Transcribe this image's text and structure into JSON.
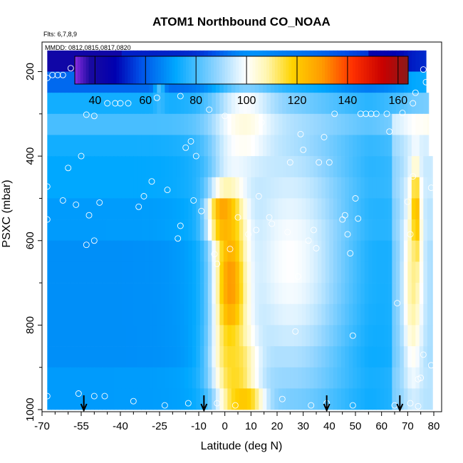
{
  "chart_data": {
    "type": "heatmap",
    "title": "ATOM1 Northbound CO_NOAA",
    "flights_label": "Flts: 6,7,8,9",
    "mmdd_label": "MMDD: 0812,0815,0817,0820",
    "xlabel": "Latitude (deg N)",
    "ylabel": "PSXC (mbar)",
    "xlim": [
      -70,
      83
    ],
    "ylim": [
      1005,
      130
    ],
    "y_inverted": true,
    "x_ticks": [
      -70,
      -55,
      -40,
      -25,
      -10,
      0,
      10,
      20,
      30,
      40,
      50,
      60,
      70,
      80
    ],
    "y_ticks": [
      200,
      400,
      600,
      800,
      1000
    ],
    "colorbar": {
      "range": [
        32,
        164
      ],
      "ticks": [
        40,
        60,
        80,
        100,
        120,
        140,
        160
      ],
      "stops": [
        {
          "v": 32,
          "c": "#8a2be2"
        },
        {
          "v": 38,
          "c": "#1a0aa0"
        },
        {
          "v": 48,
          "c": "#0000b0"
        },
        {
          "v": 58,
          "c": "#0050e8"
        },
        {
          "v": 72,
          "c": "#00a8ff"
        },
        {
          "v": 88,
          "c": "#8fd4ff"
        },
        {
          "v": 100,
          "c": "#ffffff"
        },
        {
          "v": 108,
          "c": "#fff6b0"
        },
        {
          "v": 118,
          "c": "#ffd400"
        },
        {
          "v": 130,
          "c": "#ff9a00"
        },
        {
          "v": 142,
          "c": "#ff3000"
        },
        {
          "v": 154,
          "c": "#c80000"
        },
        {
          "v": 164,
          "c": "#8b1a1a"
        }
      ]
    },
    "lat_range": [
      -68,
      79
    ],
    "pressure_levels": [
      175,
      225,
      275,
      325,
      375,
      425,
      475,
      525,
      575,
      625,
      675,
      725,
      775,
      825,
      875,
      925,
      975
    ],
    "background_profile": [
      {
        "p": 175,
        "v": 52
      },
      {
        "p": 225,
        "v": 62
      },
      {
        "p": 275,
        "v": 74
      },
      {
        "p": 325,
        "v": 80
      },
      {
        "p": 375,
        "v": 74
      },
      {
        "p": 425,
        "v": 72
      },
      {
        "p": 475,
        "v": 72
      },
      {
        "p": 525,
        "v": 70
      },
      {
        "p": 575,
        "v": 70
      },
      {
        "p": 625,
        "v": 68
      },
      {
        "p": 675,
        "v": 68
      },
      {
        "p": 725,
        "v": 68
      },
      {
        "p": 775,
        "v": 68
      },
      {
        "p": 825,
        "v": 68
      },
      {
        "p": 875,
        "v": 68
      },
      {
        "p": 925,
        "v": 70
      },
      {
        "p": 975,
        "v": 70
      }
    ],
    "plumes": [
      {
        "lat": 3,
        "p": 700,
        "v": 155,
        "wlat": 7,
        "wp": 220
      },
      {
        "lat": 0,
        "p": 540,
        "v": 145,
        "wlat": 6,
        "wp": 60
      },
      {
        "lat": 8,
        "p": 990,
        "v": 158,
        "wlat": 7,
        "wp": 25
      },
      {
        "lat": 5,
        "p": 900,
        "v": 125,
        "wlat": 9,
        "wp": 100
      },
      {
        "lat": 8,
        "p": 330,
        "v": 105,
        "wlat": 12,
        "wp": 120
      },
      {
        "lat": 25,
        "p": 650,
        "v": 100,
        "wlat": 25,
        "wp": 400
      },
      {
        "lat": 73,
        "p": 560,
        "v": 150,
        "wlat": 1.6,
        "wp": 110
      },
      {
        "lat": 72,
        "p": 700,
        "v": 110,
        "wlat": 4,
        "wp": 250
      },
      {
        "lat": -25,
        "p": 245,
        "v": 112,
        "wlat": 2,
        "wp": 20
      }
    ],
    "profile_markers_lat": [
      -54,
      -8,
      39,
      67
    ],
    "sample_points": [
      {
        "lat": -68,
        "p": 215
      },
      {
        "lat": -66,
        "p": 208
      },
      {
        "lat": -64,
        "p": 208
      },
      {
        "lat": -62,
        "p": 208
      },
      {
        "lat": -59,
        "p": 192
      },
      {
        "lat": -68,
        "p": 472
      },
      {
        "lat": -68,
        "p": 550
      },
      {
        "lat": -62,
        "p": 505
      },
      {
        "lat": -57,
        "p": 515
      },
      {
        "lat": -55,
        "p": 400
      },
      {
        "lat": -60,
        "p": 428
      },
      {
        "lat": -53,
        "p": 610
      },
      {
        "lat": -52,
        "p": 540
      },
      {
        "lat": -50,
        "p": 600
      },
      {
        "lat": -48,
        "p": 510
      },
      {
        "lat": -53,
        "p": 302
      },
      {
        "lat": -50,
        "p": 305
      },
      {
        "lat": -45,
        "p": 275
      },
      {
        "lat": -42,
        "p": 275
      },
      {
        "lat": -40,
        "p": 275
      },
      {
        "lat": -37,
        "p": 275
      },
      {
        "lat": -33,
        "p": 520
      },
      {
        "lat": -31,
        "p": 495
      },
      {
        "lat": -28,
        "p": 460
      },
      {
        "lat": -22,
        "p": 480
      },
      {
        "lat": -15,
        "p": 380
      },
      {
        "lat": -13,
        "p": 365
      },
      {
        "lat": -11,
        "p": 400
      },
      {
        "lat": -17,
        "p": 565
      },
      {
        "lat": -18,
        "p": 595
      },
      {
        "lat": -9,
        "p": 530
      },
      {
        "lat": -12,
        "p": 505
      },
      {
        "lat": -6,
        "p": 290
      },
      {
        "lat": 0,
        "p": 305
      },
      {
        "lat": 2,
        "p": 620
      },
      {
        "lat": 5,
        "p": 545
      },
      {
        "lat": 9,
        "p": 585
      },
      {
        "lat": 12,
        "p": 575
      },
      {
        "lat": 13,
        "p": 495
      },
      {
        "lat": 17,
        "p": 545
      },
      {
        "lat": 18,
        "p": 560
      },
      {
        "lat": 24,
        "p": 580
      },
      {
        "lat": 25,
        "p": 415
      },
      {
        "lat": 28,
        "p": 685
      },
      {
        "lat": 27,
        "p": 815
      },
      {
        "lat": 30,
        "p": 385
      },
      {
        "lat": 32,
        "p": 600
      },
      {
        "lat": 34,
        "p": 575
      },
      {
        "lat": 35,
        "p": 618
      },
      {
        "lat": 36,
        "p": 415
      },
      {
        "lat": 38,
        "p": 355
      },
      {
        "lat": 40,
        "p": 415
      },
      {
        "lat": 42,
        "p": 300
      },
      {
        "lat": 45,
        "p": 550
      },
      {
        "lat": 47,
        "p": 585
      },
      {
        "lat": 46,
        "p": 540
      },
      {
        "lat": 48,
        "p": 630
      },
      {
        "lat": 49,
        "p": 825
      },
      {
        "lat": 50,
        "p": 500
      },
      {
        "lat": 51,
        "p": 548
      },
      {
        "lat": 52,
        "p": 300
      },
      {
        "lat": 54,
        "p": 300
      },
      {
        "lat": 56,
        "p": 300
      },
      {
        "lat": 58,
        "p": 300
      },
      {
        "lat": 62,
        "p": 300
      },
      {
        "lat": 63,
        "p": 342
      },
      {
        "lat": 66,
        "p": 748
      },
      {
        "lat": 68,
        "p": 298
      },
      {
        "lat": 72,
        "p": 448
      },
      {
        "lat": 72,
        "p": 275
      },
      {
        "lat": 73,
        "p": 250
      },
      {
        "lat": 74,
        "p": 928
      },
      {
        "lat": 75,
        "p": 925
      },
      {
        "lat": 76,
        "p": 870
      },
      {
        "lat": 76,
        "p": 195
      },
      {
        "lat": 77,
        "p": 225
      },
      {
        "lat": 79,
        "p": 475
      },
      {
        "lat": 79,
        "p": 895
      },
      {
        "lat": 70,
        "p": 508
      },
      {
        "lat": 71,
        "p": 585
      },
      {
        "lat": -3,
        "p": 655
      },
      {
        "lat": -4,
        "p": 632
      },
      {
        "lat": -26,
        "p": 262
      },
      {
        "lat": -17,
        "p": 258
      },
      {
        "lat": -6,
        "p": 220
      },
      {
        "lat": 14,
        "p": 320
      },
      {
        "lat": 29,
        "p": 348
      },
      {
        "lat": 39,
        "p": 200
      },
      {
        "lat": -68,
        "p": 968
      },
      {
        "lat": -56,
        "p": 962
      },
      {
        "lat": -50,
        "p": 968
      },
      {
        "lat": -46,
        "p": 968
      },
      {
        "lat": -35,
        "p": 980
      },
      {
        "lat": -23,
        "p": 990
      },
      {
        "lat": -14,
        "p": 985
      },
      {
        "lat": -3,
        "p": 985
      },
      {
        "lat": 4,
        "p": 990
      },
      {
        "lat": 22,
        "p": 975
      },
      {
        "lat": 33,
        "p": 990
      },
      {
        "lat": 39,
        "p": 985
      },
      {
        "lat": 49,
        "p": 990
      },
      {
        "lat": 65,
        "p": 990
      },
      {
        "lat": 71,
        "p": 985
      },
      {
        "lat": 74,
        "p": 992
      }
    ]
  }
}
